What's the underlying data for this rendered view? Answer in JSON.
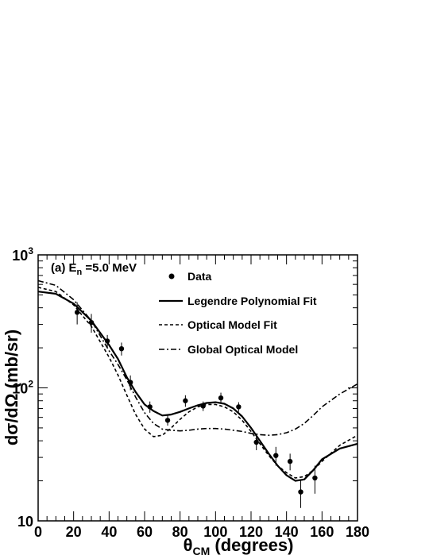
{
  "chart_data": {
    "type": "scatter",
    "annotation": {
      "prefix": "(a) E",
      "subscript": "n",
      "suffix": " =5.0 MeV"
    },
    "xlabel": {
      "main": "θ",
      "sub": "CM",
      "rest": " (degrees)"
    },
    "ylabel": "dσ/dΩ (mb/sr)",
    "xlim": [
      0,
      180
    ],
    "ylim": [
      10,
      1000
    ],
    "yscale": "log",
    "x_ticks": [
      0,
      20,
      40,
      60,
      80,
      100,
      120,
      140,
      160,
      180
    ],
    "x_tick_labels": [
      "0",
      "20",
      "40",
      "60",
      "80",
      "100",
      "120",
      "140",
      "160",
      "180"
    ],
    "y_ticks": [
      10,
      100,
      1000
    ],
    "y_tick_labels": [
      {
        "base": "10",
        "exp": ""
      },
      {
        "base": "10",
        "exp": "2"
      },
      {
        "base": "10",
        "exp": "3"
      }
    ],
    "legend_position": "top-right",
    "series": [
      {
        "name": "Data",
        "kind": "points",
        "points": [
          {
            "x": 22,
            "y": 370,
            "err": 70
          },
          {
            "x": 30,
            "y": 310,
            "err": 50
          },
          {
            "x": 39,
            "y": 225,
            "err": 25
          },
          {
            "x": 47,
            "y": 197,
            "err": 22
          },
          {
            "x": 52,
            "y": 110,
            "err": 14
          },
          {
            "x": 63,
            "y": 72,
            "err": 7
          },
          {
            "x": 73,
            "y": 57,
            "err": 5
          },
          {
            "x": 83,
            "y": 80,
            "err": 8
          },
          {
            "x": 93,
            "y": 73,
            "err": 6
          },
          {
            "x": 103,
            "y": 84,
            "err": 8
          },
          {
            "x": 113,
            "y": 72,
            "err": 6
          },
          {
            "x": 123,
            "y": 39,
            "err": 5
          },
          {
            "x": 134,
            "y": 31,
            "err": 5
          },
          {
            "x": 142,
            "y": 28,
            "err": 4
          },
          {
            "x": 148,
            "y": 16.5,
            "err": 4
          },
          {
            "x": 156,
            "y": 21,
            "err": 5
          }
        ]
      },
      {
        "name": "Legendre Polynomial Fit",
        "kind": "line",
        "dash": "solid",
        "x": [
          0,
          10,
          20,
          30,
          40,
          45,
          50,
          55,
          60,
          65,
          70,
          75,
          80,
          85,
          90,
          95,
          100,
          105,
          110,
          115,
          120,
          125,
          130,
          135,
          140,
          145,
          150,
          155,
          160,
          170,
          180
        ],
        "y": [
          530,
          510,
          430,
          320,
          210,
          165,
          120,
          93,
          75,
          67,
          62,
          63,
          66,
          70,
          74,
          77,
          78,
          76,
          70,
          61,
          50,
          40,
          32,
          26,
          22,
          20,
          20.5,
          24,
          29,
          35,
          38
        ]
      },
      {
        "name": "Optical Model Fit",
        "kind": "line",
        "dash": "dashed",
        "x": [
          0,
          10,
          20,
          30,
          40,
          45,
          50,
          55,
          60,
          65,
          70,
          75,
          80,
          85,
          90,
          95,
          100,
          105,
          110,
          115,
          120,
          125,
          130,
          135,
          140,
          145,
          150,
          155,
          160,
          170,
          180
        ],
        "y": [
          570,
          530,
          420,
          290,
          170,
          125,
          88,
          63,
          49,
          43,
          44,
          50,
          58,
          66,
          72,
          75,
          75,
          72,
          66,
          57,
          47,
          38,
          31,
          26,
          23,
          21,
          21.5,
          24,
          28,
          37,
          44
        ]
      },
      {
        "name": "Global Optical Model",
        "kind": "line",
        "dash": "dashdot",
        "x": [
          0,
          10,
          20,
          30,
          40,
          45,
          50,
          55,
          60,
          65,
          70,
          75,
          80,
          85,
          90,
          95,
          100,
          105,
          110,
          115,
          120,
          125,
          130,
          135,
          140,
          145,
          150,
          155,
          160,
          170,
          180
        ],
        "y": [
          640,
          590,
          460,
          320,
          190,
          150,
          115,
          85,
          65,
          54,
          49,
          48,
          47.5,
          48,
          49,
          49.5,
          49.5,
          49,
          48,
          47,
          45.5,
          44.5,
          44,
          44.5,
          46,
          49,
          54,
          62,
          72,
          90,
          107
        ]
      }
    ]
  }
}
